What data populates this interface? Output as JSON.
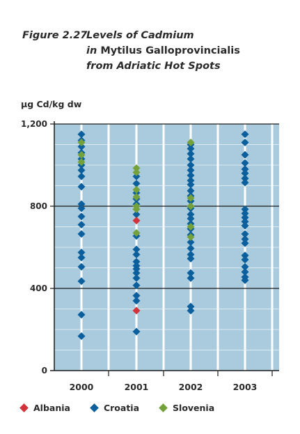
{
  "figure": {
    "number": "Figure 2.27",
    "title_line1": "Levels of Cadmium",
    "title_line2_prefix": "in",
    "title_line2_rest": "Mytilus Galloprovincialis",
    "title_line3": "from Adriatic Hot Spots"
  },
  "colors": {
    "plot_bg": "#a9cbdd",
    "gridline": "#ffffff",
    "axis": "#1a1a1a",
    "Albania": "#d2333a",
    "Croatia": "#0b5f9c",
    "Slovenia": "#74a13a"
  },
  "chart_data": {
    "type": "scatter",
    "ylabel": "µg Cd/kg dw",
    "ylim": [
      0,
      1200
    ],
    "yticks": [
      0,
      400,
      800,
      1200
    ],
    "ytick_labels": [
      "0",
      "400",
      "800",
      "1,200"
    ],
    "categories": [
      "2000",
      "2001",
      "2002",
      "2003"
    ],
    "grid": true,
    "legend_position": "bottom",
    "series": [
      {
        "name": "Albania",
        "points": [
          {
            "x": "2001",
            "y": 730
          },
          {
            "x": "2001",
            "y": 292
          }
        ]
      },
      {
        "name": "Croatia",
        "points": [
          {
            "x": "2000",
            "y": 1150
          },
          {
            "x": "2000",
            "y": 1120
          },
          {
            "x": "2000",
            "y": 1090
          },
          {
            "x": "2000",
            "y": 1060
          },
          {
            "x": "2000",
            "y": 1030
          },
          {
            "x": "2000",
            "y": 1000
          },
          {
            "x": "2000",
            "y": 975
          },
          {
            "x": "2000",
            "y": 945
          },
          {
            "x": "2000",
            "y": 895
          },
          {
            "x": "2000",
            "y": 810
          },
          {
            "x": "2000",
            "y": 790
          },
          {
            "x": "2000",
            "y": 750
          },
          {
            "x": "2000",
            "y": 710
          },
          {
            "x": "2000",
            "y": 665
          },
          {
            "x": "2000",
            "y": 575
          },
          {
            "x": "2000",
            "y": 550
          },
          {
            "x": "2000",
            "y": 505
          },
          {
            "x": "2000",
            "y": 435
          },
          {
            "x": "2000",
            "y": 272
          },
          {
            "x": "2000",
            "y": 168
          },
          {
            "x": "2001",
            "y": 945
          },
          {
            "x": "2001",
            "y": 910
          },
          {
            "x": "2001",
            "y": 865
          },
          {
            "x": "2001",
            "y": 835
          },
          {
            "x": "2001",
            "y": 810
          },
          {
            "x": "2001",
            "y": 760
          },
          {
            "x": "2001",
            "y": 655
          },
          {
            "x": "2001",
            "y": 590
          },
          {
            "x": "2001",
            "y": 565
          },
          {
            "x": "2001",
            "y": 530
          },
          {
            "x": "2001",
            "y": 510
          },
          {
            "x": "2001",
            "y": 495
          },
          {
            "x": "2001",
            "y": 475
          },
          {
            "x": "2001",
            "y": 450
          },
          {
            "x": "2001",
            "y": 415
          },
          {
            "x": "2001",
            "y": 365
          },
          {
            "x": "2001",
            "y": 340
          },
          {
            "x": "2001",
            "y": 190
          },
          {
            "x": "2002",
            "y": 1100
          },
          {
            "x": "2002",
            "y": 1080
          },
          {
            "x": "2002",
            "y": 1055
          },
          {
            "x": "2002",
            "y": 1030
          },
          {
            "x": "2002",
            "y": 1000
          },
          {
            "x": "2002",
            "y": 975
          },
          {
            "x": "2002",
            "y": 950
          },
          {
            "x": "2002",
            "y": 925
          },
          {
            "x": "2002",
            "y": 905
          },
          {
            "x": "2002",
            "y": 875
          },
          {
            "x": "2002",
            "y": 850
          },
          {
            "x": "2002",
            "y": 825
          },
          {
            "x": "2002",
            "y": 790
          },
          {
            "x": "2002",
            "y": 760
          },
          {
            "x": "2002",
            "y": 740
          },
          {
            "x": "2002",
            "y": 715
          },
          {
            "x": "2002",
            "y": 690
          },
          {
            "x": "2002",
            "y": 660
          },
          {
            "x": "2002",
            "y": 625
          },
          {
            "x": "2002",
            "y": 595
          },
          {
            "x": "2002",
            "y": 565
          },
          {
            "x": "2002",
            "y": 545
          },
          {
            "x": "2002",
            "y": 475
          },
          {
            "x": "2002",
            "y": 450
          },
          {
            "x": "2002",
            "y": 312
          },
          {
            "x": "2002",
            "y": 292
          },
          {
            "x": "2003",
            "y": 1150
          },
          {
            "x": "2003",
            "y": 1110
          },
          {
            "x": "2003",
            "y": 1050
          },
          {
            "x": "2003",
            "y": 1010
          },
          {
            "x": "2003",
            "y": 980
          },
          {
            "x": "2003",
            "y": 960
          },
          {
            "x": "2003",
            "y": 935
          },
          {
            "x": "2003",
            "y": 915
          },
          {
            "x": "2003",
            "y": 785
          },
          {
            "x": "2003",
            "y": 765
          },
          {
            "x": "2003",
            "y": 745
          },
          {
            "x": "2003",
            "y": 725
          },
          {
            "x": "2003",
            "y": 705
          },
          {
            "x": "2003",
            "y": 665
          },
          {
            "x": "2003",
            "y": 640
          },
          {
            "x": "2003",
            "y": 620
          },
          {
            "x": "2003",
            "y": 560
          },
          {
            "x": "2003",
            "y": 540
          },
          {
            "x": "2003",
            "y": 505
          },
          {
            "x": "2003",
            "y": 480
          },
          {
            "x": "2003",
            "y": 455
          },
          {
            "x": "2003",
            "y": 440
          }
        ]
      },
      {
        "name": "Slovenia",
        "points": [
          {
            "x": "2000",
            "y": 1110
          },
          {
            "x": "2000",
            "y": 1050
          },
          {
            "x": "2000",
            "y": 1015
          },
          {
            "x": "2001",
            "y": 985
          },
          {
            "x": "2001",
            "y": 965
          },
          {
            "x": "2001",
            "y": 880
          },
          {
            "x": "2001",
            "y": 845
          },
          {
            "x": "2001",
            "y": 800
          },
          {
            "x": "2001",
            "y": 785
          },
          {
            "x": "2001",
            "y": 670
          },
          {
            "x": "2002",
            "y": 1110
          },
          {
            "x": "2002",
            "y": 840
          },
          {
            "x": "2002",
            "y": 800
          },
          {
            "x": "2002",
            "y": 700
          },
          {
            "x": "2002",
            "y": 650
          }
        ]
      }
    ]
  }
}
